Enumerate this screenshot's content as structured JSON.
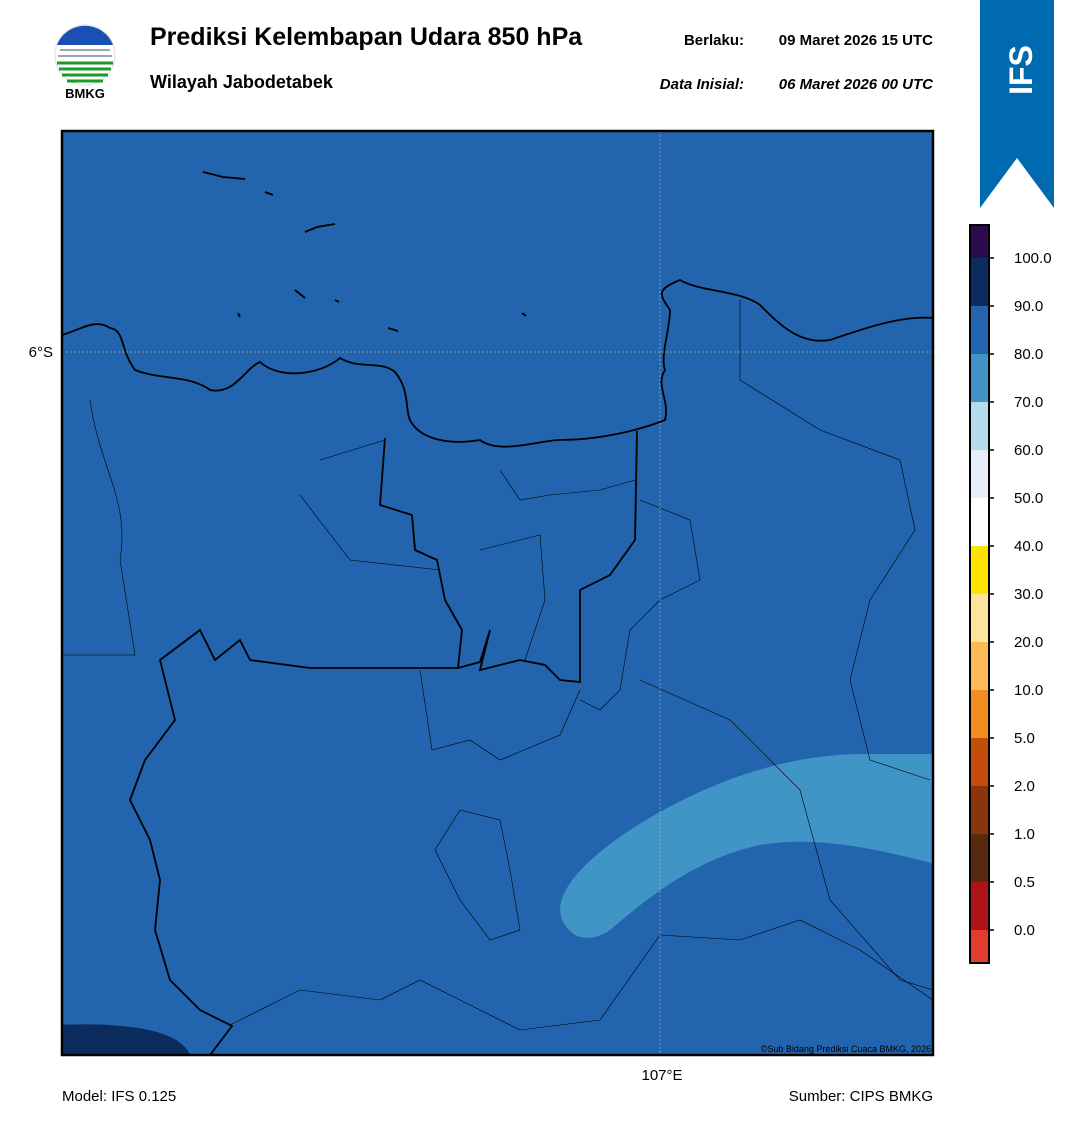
{
  "header": {
    "logo_text": "BMKG",
    "title": "Prediksi Kelembapan Udara 850 hPa",
    "subtitle": "Wilayah Jabodetabek",
    "valid_label": "Berlaku:",
    "valid_time": "09 Maret 2026 15 UTC",
    "init_label": "Data Inisial:",
    "init_time": "06 Maret 2026 00 UTC"
  },
  "banner": {
    "text": "IFS"
  },
  "map": {
    "lat_label": "6°S",
    "lon_label": "107°E",
    "credit": "©Sub Bidang Prediksi Cuaca BMKG, 2026"
  },
  "colorbar": {
    "labels": [
      "0.0",
      "0.5",
      "1.0",
      "2.0",
      "5.0",
      "10.0",
      "20.0",
      "30.0",
      "40.0",
      "50.0",
      "60.0",
      "70.0",
      "80.0",
      "90.0",
      "100.0"
    ],
    "colors": [
      "#e23c2e",
      "#b0121a",
      "#5a2a10",
      "#8a360c",
      "#c44d0a",
      "#f28d1f",
      "#fdb955",
      "#fee39c",
      "#ffe300",
      "#ffffff",
      "#e5eef8",
      "#b5dbea",
      "#3f95c6",
      "#2364ae",
      "#0b2c5c",
      "#2b0a4e"
    ]
  },
  "footer": {
    "model": "Model: IFS 0.125",
    "source": "Sumber: CIPS BMKG"
  }
}
